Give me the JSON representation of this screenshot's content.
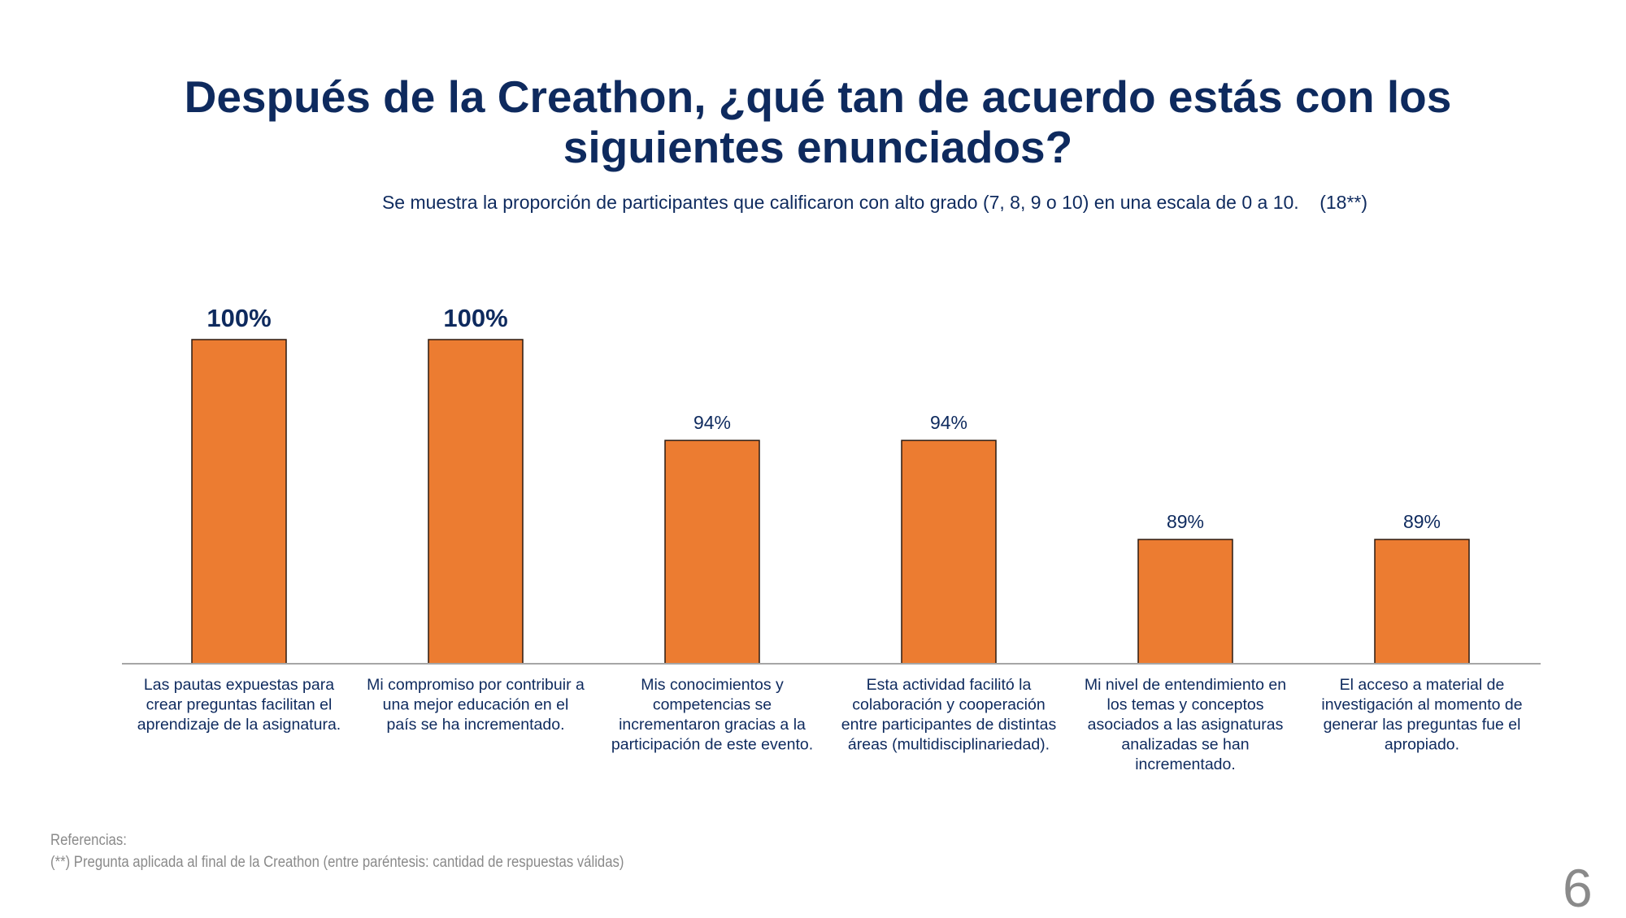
{
  "slide": {
    "title_line1": "Después de la Creathon, ¿qué tan de acuerdo estás con los",
    "title_line2": "siguientes enunciados?",
    "subtitle": "Se muestra la proporción de participantes que calificaron con alto grado (7, 8, 9 o 10) en una escala de 0 a 10.    (18**)",
    "references_heading": "Referencias:",
    "references_note": "(**) Pregunta aplicada al final de la Creathon (entre paréntesis: cantidad de respuestas válidas)",
    "page_number": "6"
  },
  "colors": {
    "bar": "#ec7c31",
    "text": "#0e2a5e",
    "muted": "#8a8a8a"
  },
  "chart_data": {
    "type": "bar",
    "title": "Después de la Creathon, ¿qué tan de acuerdo estás con los siguientes enunciados?",
    "xlabel": "",
    "ylabel": "",
    "grid": false,
    "legend": "none",
    "ylim": [
      82,
      100
    ],
    "categories": [
      [
        "Las pautas expuestas para",
        "crear preguntas facilitan el",
        "aprendizaje de la asignatura."
      ],
      [
        "Mi compromiso por contribuir a",
        "una mejor educación en el",
        "país se ha incrementado."
      ],
      [
        "Mis conocimientos y",
        "competencias se",
        "incrementaron gracias a la",
        "participación de este evento."
      ],
      [
        "Esta actividad facilitó la",
        "colaboración y cooperación",
        "entre participantes de distintas",
        "áreas (multidisciplinariedad)."
      ],
      [
        "Mi nivel de entendimiento en",
        "los temas y conceptos",
        "asociados a las asignaturas",
        "analizadas se han",
        "incrementado."
      ],
      [
        "El acceso a material de",
        "investigación al momento de",
        "generar las preguntas fue el",
        "apropiado."
      ]
    ],
    "values": [
      100,
      100,
      94.4,
      94.4,
      88.9,
      88.9
    ],
    "labels": [
      "100%",
      "100%",
      "94%",
      "94%",
      "89%",
      "89%"
    ],
    "label_emphasis": [
      true,
      true,
      false,
      false,
      false,
      false
    ]
  }
}
